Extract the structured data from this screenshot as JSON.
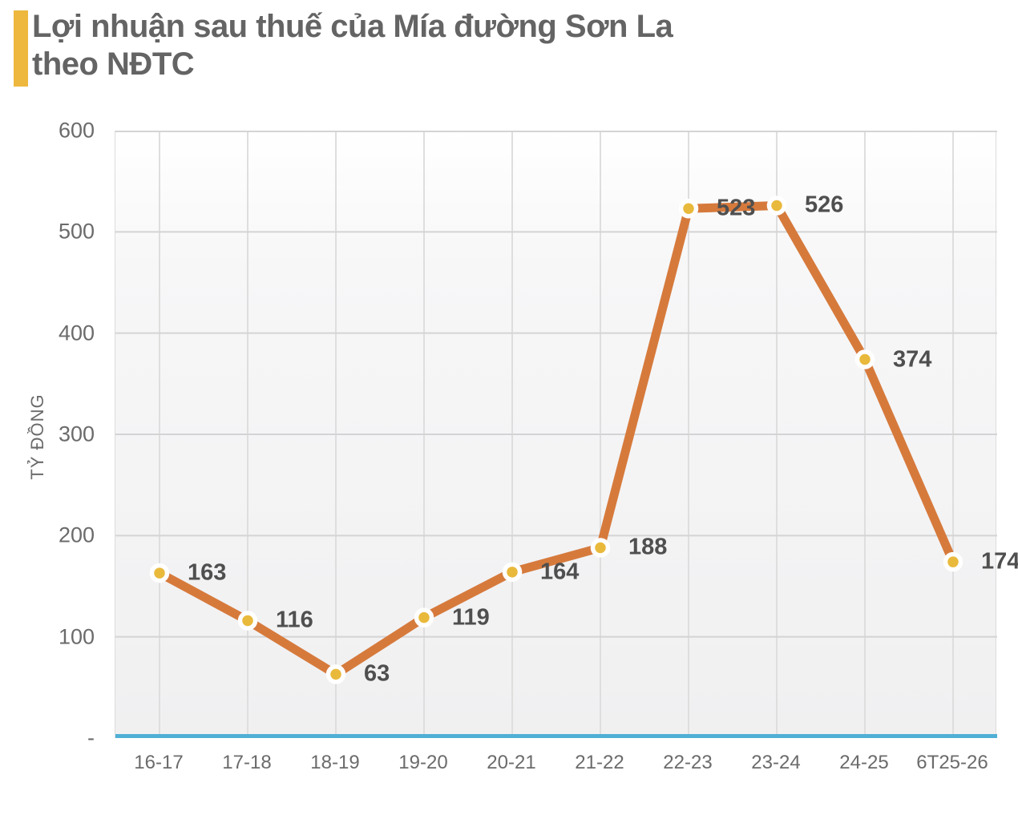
{
  "header": {
    "title_lines": [
      "Lợi nhuận sau thuế của Mía đường Sơn La",
      "theo NĐTC"
    ]
  },
  "chart_data": {
    "type": "line",
    "title": "Lợi nhuận sau thuế của Mía đường Sơn La theo NĐTC",
    "categories": [
      "16-17",
      "17-18",
      "18-19",
      "19-20",
      "20-21",
      "21-22",
      "22-23",
      "23-24",
      "24-25",
      "6T25-26"
    ],
    "values": [
      163,
      116,
      63,
      119,
      164,
      188,
      523,
      526,
      374,
      174
    ],
    "data_labels": [
      "163",
      "116",
      "63",
      "119",
      "164",
      "188",
      "523",
      "526",
      "374",
      "174"
    ],
    "xlabel": "",
    "ylabel": "TỶ ĐỒNG",
    "ylim": [
      0,
      600
    ],
    "ytick_step": 100,
    "yticks": [
      {
        "value": 600,
        "label": "600"
      },
      {
        "value": 500,
        "label": "500"
      },
      {
        "value": 400,
        "label": "400"
      },
      {
        "value": 300,
        "label": "300"
      },
      {
        "value": 200,
        "label": "200"
      },
      {
        "value": 100,
        "label": "100"
      },
      {
        "value": 0,
        "label": "-"
      }
    ],
    "grid": {
      "horizontal": true,
      "vertical": true
    },
    "legend_position": "none",
    "colors": {
      "accent_bar": "#EDB83D",
      "title_text": "#646464",
      "line": "#D67A3C",
      "marker_fill": "#E9B93C",
      "marker_ring": "#FFFFFF",
      "axis_line": "#4FB0D6",
      "grid_horizontal": "#D4D4D4",
      "grid_vertical": "#DEDEDE",
      "tick_text": "#6B6B6B",
      "data_label_text": "#4F4F4F",
      "plot_bg_top": "#FFFFFF",
      "plot_bg_bottom": "#F0F0F1"
    }
  }
}
